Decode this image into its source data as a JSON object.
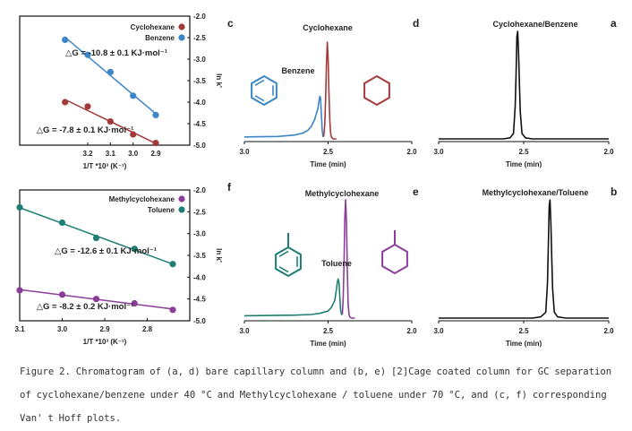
{
  "colors": {
    "red": "#a23a3a",
    "blue": "#3a86c8",
    "teal": "#1e7e72",
    "purple": "#8a3e9a",
    "black": "#111111"
  },
  "chart_data": [
    {
      "panel": "a",
      "type": "line",
      "title": "Cyclohexane/Benzene",
      "xlabel": "Time (min)",
      "xlim": [
        3.0,
        2.0
      ],
      "xticks": [
        "3.0",
        "2.5",
        "2.0"
      ],
      "series": [
        {
          "name": "",
          "color": "#111111",
          "x": [
            3.0,
            2.62,
            2.58,
            2.56,
            2.55,
            2.545,
            2.54,
            2.535,
            2.53,
            2.525,
            2.52,
            2.51,
            2.49,
            2.45,
            2.0
          ],
          "y": [
            0.0,
            0.0,
            0.01,
            0.05,
            0.3,
            0.6,
            0.95,
            1.0,
            0.8,
            0.5,
            0.25,
            0.05,
            0.01,
            0.0,
            0.0
          ]
        }
      ]
    },
    {
      "panel": "b",
      "type": "line",
      "title": "Methylcyclohexane/Toluene",
      "xlabel": "Time (min)",
      "xlim": [
        3.0,
        2.0
      ],
      "xticks": [
        "3.0",
        "2.5",
        "2.0"
      ],
      "series": [
        {
          "name": "",
          "color": "#111111",
          "x": [
            3.0,
            2.45,
            2.4,
            2.37,
            2.36,
            2.355,
            2.35,
            2.345,
            2.34,
            2.335,
            2.33,
            2.32,
            2.3,
            2.25,
            2.0
          ],
          "y": [
            0.0,
            0.0,
            0.01,
            0.05,
            0.3,
            0.6,
            0.95,
            1.0,
            0.8,
            0.5,
            0.25,
            0.05,
            0.01,
            0.0,
            0.0
          ]
        }
      ]
    },
    {
      "panel": "d",
      "type": "line",
      "xlabel": "Time (min)",
      "xlim": [
        3.0,
        2.0
      ],
      "xticks": [
        "3.0",
        "2.5",
        "2.0"
      ],
      "series": [
        {
          "name": "Benzene",
          "color": "#3a86c8",
          "x": [
            3.0,
            2.8,
            2.7,
            2.65,
            2.62,
            2.6,
            2.58,
            2.56,
            2.555,
            2.55,
            2.545,
            2.54,
            2.535,
            2.53
          ],
          "y": [
            0.02,
            0.025,
            0.04,
            0.06,
            0.09,
            0.13,
            0.2,
            0.32,
            0.38,
            0.44,
            0.42,
            0.25,
            0.08,
            0.02
          ]
        },
        {
          "name": "Cyclohexane",
          "color": "#a23a3a",
          "x": [
            2.53,
            2.525,
            2.52,
            2.515,
            2.51,
            2.505,
            2.5,
            2.495,
            2.49,
            2.485,
            2.48,
            2.47,
            2.45
          ],
          "y": [
            0.02,
            0.04,
            0.15,
            0.4,
            0.75,
            1.0,
            0.85,
            0.5,
            0.2,
            0.06,
            0.02,
            0.0,
            0.0
          ]
        }
      ],
      "annotations": [
        "Cyclohexane",
        "Benzene"
      ]
    },
    {
      "panel": "e",
      "type": "line",
      "xlabel": "Time (min)",
      "xlim": [
        3.0,
        2.0
      ],
      "xticks": [
        "3.0",
        "2.5",
        "2.0"
      ],
      "series": [
        {
          "name": "Toluene",
          "color": "#1e7e72",
          "x": [
            3.0,
            2.7,
            2.6,
            2.55,
            2.5,
            2.48,
            2.46,
            2.45,
            2.445,
            2.44,
            2.435,
            2.43,
            2.425,
            2.42,
            2.415
          ],
          "y": [
            0.02,
            0.025,
            0.03,
            0.04,
            0.06,
            0.09,
            0.15,
            0.24,
            0.3,
            0.33,
            0.3,
            0.18,
            0.07,
            0.03,
            0.03
          ]
        },
        {
          "name": "Methylcyclohexane",
          "color": "#8a3e9a",
          "x": [
            2.415,
            2.41,
            2.405,
            2.4,
            2.395,
            2.39,
            2.385,
            2.38,
            2.375,
            2.37,
            2.36,
            2.34
          ],
          "y": [
            0.03,
            0.15,
            0.45,
            0.85,
            1.0,
            0.8,
            0.4,
            0.12,
            0.03,
            0.01,
            0.0,
            0.0
          ]
        }
      ],
      "annotations": [
        "Methylcyclohexane",
        "Toluene"
      ]
    },
    {
      "panel": "c",
      "type": "scatter",
      "xlabel": "1/T *10³ (K⁻¹)",
      "ylabel": "ln k'",
      "xlim": [
        3.5,
        2.75
      ],
      "xticks": [
        "3.2",
        "3.1",
        "3.0",
        "2.9"
      ],
      "ylim": [
        -5.0,
        -2.0
      ],
      "yticks": [
        "-2.0",
        "-2.5",
        "-3.0",
        "-3.5",
        "-4.0",
        "-4.5",
        "-5.0"
      ],
      "legend": "top-left",
      "series": [
        {
          "name": "Cyclohexane",
          "color": "#a23a3a",
          "x": [
            3.3,
            3.2,
            3.1,
            3.0,
            2.9
          ],
          "y": [
            -4.0,
            -4.1,
            -4.45,
            -4.75,
            -4.95
          ]
        },
        {
          "name": "Benzene",
          "color": "#3a86c8",
          "x": [
            3.3,
            3.2,
            3.1,
            3.0,
            2.9
          ],
          "y": [
            -2.55,
            -2.9,
            -3.3,
            -3.85,
            -4.3
          ]
        }
      ],
      "annotations": [
        "△G = -10.8 ± 0.1 KJ·mol⁻¹",
        "△G = -7.8 ± 0.1 KJ·mol⁻¹"
      ]
    },
    {
      "panel": "f",
      "type": "scatter",
      "xlabel": "1/T *10³ (K⁻¹)",
      "ylabel": "ln k'",
      "xlim": [
        3.1,
        2.7
      ],
      "xticks": [
        "3.1",
        "3.0",
        "2.9",
        "2.8"
      ],
      "ylim": [
        -5.0,
        -2.0
      ],
      "yticks": [
        "-2.0",
        "-2.5",
        "-3.0",
        "-3.5",
        "-4.0",
        "-4.5",
        "-5.0"
      ],
      "legend": "top-left",
      "series": [
        {
          "name": "Methylcyclohexane",
          "color": "#8a3e9a",
          "x": [
            3.1,
            3.0,
            2.92,
            2.83,
            2.74
          ],
          "y": [
            -4.3,
            -4.4,
            -4.5,
            -4.6,
            -4.75
          ]
        },
        {
          "name": "Toluene",
          "color": "#1e7e72",
          "x": [
            3.1,
            3.0,
            2.92,
            2.83,
            2.74
          ],
          "y": [
            -2.4,
            -2.75,
            -3.1,
            -3.35,
            -3.7
          ]
        }
      ],
      "annotations": [
        "△G = -12.6 ± 0.1 KJ·mol⁻¹",
        "△G = -8.2 ± 0.2 KJ·mol⁻¹"
      ]
    }
  ],
  "caption": {
    "line1": "Figure 2. Chromatogram of (a, d) bare capillary column and (b, e) [2]Cage coated column for GC separation",
    "line2": "of cyclohexane/benzene under 40 °C and Methylcyclohexane / toluene under 70 °C, and (c, f) corresponding",
    "line3": "Van'  t Hoff plots."
  }
}
